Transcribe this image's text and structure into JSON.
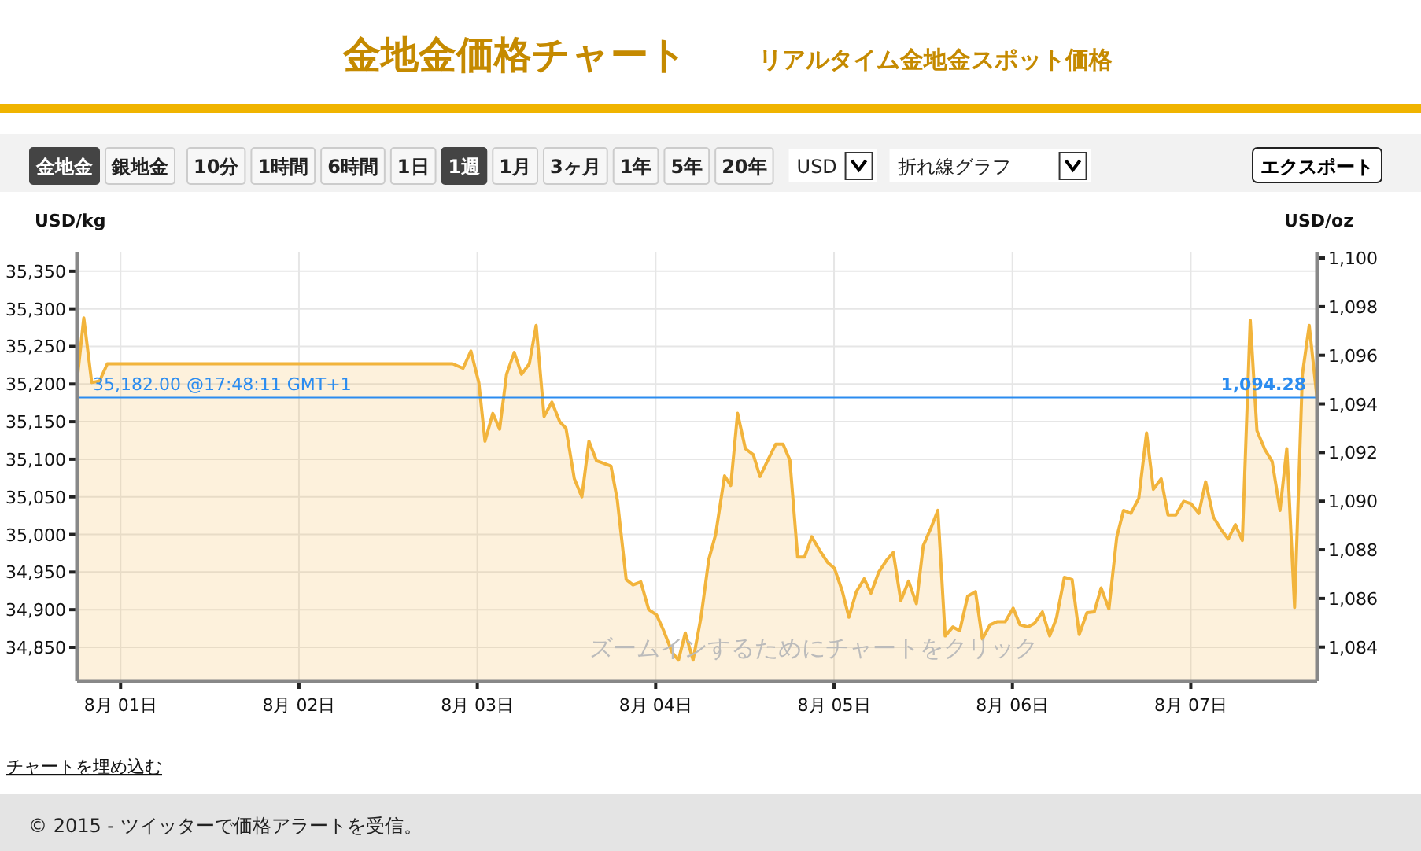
{
  "chart_data": {
    "type": "area",
    "title": "金地金価格チャート",
    "subtitle": "リアルタイム金地金スポット価格",
    "ylabel": "USD/kg",
    "y2label": "USD/oz",
    "x": [
      "--07-31T18:13",
      "--07-31T19:03",
      "--07-31T20:07",
      "--07-31T21:10",
      "--07-31T22:13",
      "--08-02T20:40",
      "--08-02T22:05",
      "--08-02T23:08",
      "--08-03T00:12",
      "--08-03T01:02",
      "--08-03T02:05",
      "--08-03T03:00",
      "--08-03T03:56",
      "--08-03T04:58",
      "--08-03T05:57",
      "--08-03T07:00",
      "--08-03T07:55",
      "--08-03T08:59",
      "--08-03T10:02",
      "--08-03T11:05",
      "--08-03T11:56",
      "--08-03T13:03",
      "--08-03T14:04",
      "--08-03T15:01",
      "--08-03T16:02",
      "--08-03T17:59",
      "--08-03T18:50",
      "--08-03T20:02",
      "--08-03T20:57",
      "--08-03T22:00",
      "--08-03T23:04",
      "--08-04T00:07",
      "--08-04T01:02",
      "--08-04T02:14",
      "--08-04T03:04",
      "--08-04T03:59",
      "--08-04T05:02",
      "--08-04T06:06",
      "--08-04T07:09",
      "--08-04T08:04",
      "--08-04T09:16",
      "--08-04T10:06",
      "--08-04T11:01",
      "--08-04T12:04",
      "--08-04T13:08",
      "--08-04T14:02",
      "--08-04T15:06",
      "--08-04T16:09",
      "--08-04T17:08",
      "--08-04T18:03",
      "--08-04T19:06",
      "--08-04T20:02",
      "--08-04T21:00",
      "--08-04T22:03",
      "--08-04T23:07",
      "--08-05T00:03",
      "--08-05T01:06",
      "--08-05T02:00",
      "--08-05T03:00",
      "--08-05T04:03",
      "--08-05T04:58",
      "--08-05T06:01",
      "--08-05T07:05",
      "--08-05T07:58",
      "--08-05T08:59",
      "--08-05T10:02",
      "--08-05T11:05",
      "--08-05T12:00",
      "--08-05T13:03",
      "--08-05T13:58",
      "--08-05T14:57",
      "--08-05T16:00",
      "--08-05T16:55",
      "--08-05T17:59",
      "--08-05T19:02",
      "--08-05T19:57",
      "--08-05T21:00",
      "--08-05T21:59",
      "--08-05T23:02",
      "--08-06T00:06",
      "--08-06T01:00",
      "--08-06T02:04",
      "--08-06T02:59",
      "--08-06T04:02",
      "--08-06T05:01",
      "--08-06T05:56",
      "--08-06T06:59",
      "--08-06T08:02",
      "--08-06T08:59",
      "--08-06T10:02",
      "--08-06T11:01",
      "--08-06T11:56",
      "--08-06T12:59",
      "--08-06T14:02",
      "--08-06T14:57",
      "--08-06T15:56",
      "--08-06T17:00",
      "--08-06T18:03",
      "--08-06T18:58",
      "--08-06T20:01",
      "--08-06T20:56",
      "--08-06T21:59",
      "--08-06T23:02",
      "--08-07T00:01",
      "--08-07T01:05",
      "--08-07T02:00",
      "--08-07T03:03",
      "--08-07T04:06",
      "--08-07T05:02",
      "--08-07T06:00",
      "--08-07T06:56",
      "--08-07T08:00",
      "--08-07T08:54",
      "--08-07T09:58",
      "--08-07T10:57",
      "--08-07T12:00",
      "--08-07T12:55",
      "--08-07T13:58",
      "--08-07T15:01",
      "--08-07T15:56",
      "--08-07T17:00"
    ],
    "series": [
      {
        "color": "#f2b43c",
        "values": [
          35211,
          35288,
          35202,
          35204,
          35227,
          35227,
          35221,
          35244,
          35202,
          35124,
          35161,
          35140,
          35213,
          35242,
          35213,
          35227,
          35278,
          35157,
          35176,
          35150,
          35141,
          35074,
          35050,
          35124,
          35098,
          35091,
          35046,
          34940,
          34933,
          34937,
          34900,
          34893,
          34873,
          34843,
          34833,
          34869,
          34833,
          34890,
          34967,
          35000,
          35078,
          35065,
          35161,
          35114,
          35106,
          35077,
          35099,
          35120,
          35120,
          35099,
          34970,
          34970,
          34997,
          34979,
          34963,
          34955,
          34925,
          34890,
          34924,
          34941,
          34922,
          34950,
          34966,
          34976,
          34912,
          34938,
          34908,
          34985,
          35009,
          35032,
          34865,
          34877,
          34872,
          34918,
          34924,
          34861,
          34880,
          34884,
          34884,
          34902,
          34880,
          34877,
          34882,
          34897,
          34865,
          34889,
          34943,
          34940,
          34867,
          34896,
          34897,
          34929,
          34901,
          34996,
          35032,
          35028,
          35048,
          35135,
          35060,
          35074,
          35026,
          35026,
          35044,
          35041,
          35028,
          35070,
          35023,
          35006,
          34994,
          35013,
          34992,
          35285,
          35138,
          35113,
          35097,
          35032,
          35114,
          34903,
          35213,
          35278,
          35180
        ]
      }
    ],
    "xlim": [
      "--07-31T18:09",
      "--08-07T17:00"
    ],
    "xticks": [
      {
        "value": "--08-01",
        "label": "8月 01日"
      },
      {
        "value": "--08-02",
        "label": "8月 02日"
      },
      {
        "value": "--08-03",
        "label": "8月 03日"
      },
      {
        "value": "--08-04",
        "label": "8月 04日"
      },
      {
        "value": "--08-05",
        "label": "8月 05日"
      },
      {
        "value": "--08-06",
        "label": "8月 06日"
      },
      {
        "value": "--08-07",
        "label": "8月 07日"
      }
    ],
    "ylim": [
      34805,
      35376
    ],
    "yticks": [
      {
        "value": 34850,
        "label": "34,850"
      },
      {
        "value": 34900,
        "label": "34,900"
      },
      {
        "value": 34950,
        "label": "34,950"
      },
      {
        "value": 35000,
        "label": "35,000"
      },
      {
        "value": 35050,
        "label": "35,050"
      },
      {
        "value": 35100,
        "label": "35,100"
      },
      {
        "value": 35150,
        "label": "35,150"
      },
      {
        "value": 35200,
        "label": "35,200"
      },
      {
        "value": 35250,
        "label": "35,250"
      },
      {
        "value": 35300,
        "label": "35,300"
      },
      {
        "value": 35350,
        "label": "35,350"
      }
    ],
    "y2lim": [
      1082.6,
      1100.26
    ],
    "y2ticks": [
      {
        "value": 1084,
        "label": "1,084"
      },
      {
        "value": 1086,
        "label": "1,086"
      },
      {
        "value": 1088,
        "label": "1,088"
      },
      {
        "value": 1090,
        "label": "1,090"
      },
      {
        "value": 1092,
        "label": "1,092"
      },
      {
        "value": 1094,
        "label": "1,094"
      },
      {
        "value": 1096,
        "label": "1,096"
      },
      {
        "value": 1098,
        "label": "1,098"
      },
      {
        "value": 1100,
        "label": "1,100"
      }
    ],
    "ref_lines": [
      {
        "axis": "y",
        "value": 35182,
        "label": "35,182.00 @17:48:11 GMT+1",
        "color": "#2b8cf0"
      }
    ],
    "grid": true,
    "annotations": [
      "金地金",
      "銀地金",
      "10分",
      "1時間",
      "6時間",
      "1日",
      "1週",
      "1月",
      "3ヶ月",
      "1年",
      "5年",
      "20年",
      "USD",
      "折れ線グラフ",
      "エクスポート",
      "ズームインするためにチャートをクリック",
      "チャートを埋め込む",
      "© 2015 - ツイッターで価格アラートを受信。",
      "1,094.28"
    ]
  }
}
